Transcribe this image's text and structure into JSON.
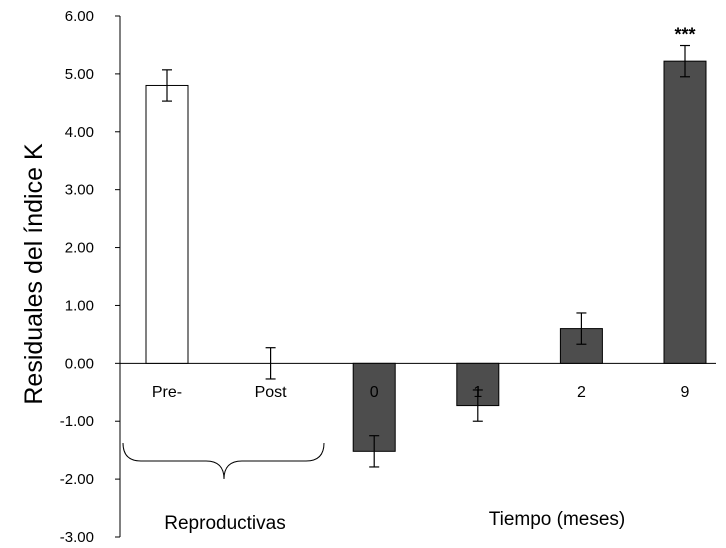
{
  "chart_data": {
    "type": "bar",
    "ylabel": "Residuales del índice K",
    "ylim": [
      -3.0,
      6.0
    ],
    "yticks": [
      "6.00",
      "5.00",
      "4.00",
      "3.00",
      "2.00",
      "1.00",
      "0.00",
      "-1.00",
      "-2.00",
      "-3.00"
    ],
    "categories": [
      "Pre-",
      "Post",
      "0",
      "1",
      "2",
      "9"
    ],
    "values": [
      4.8,
      0.0,
      -1.52,
      -0.73,
      0.6,
      5.22
    ],
    "errors": [
      0.27,
      0.27,
      0.27,
      0.27,
      0.27,
      0.27
    ],
    "fills": [
      "#ffffff",
      "#ffffff",
      "#4d4d4d",
      "#4d4d4d",
      "#4d4d4d",
      "#4d4d4d"
    ],
    "annotations": [
      {
        "category": "9",
        "text": "***"
      }
    ],
    "group_labels": {
      "reproductive": "Reproductivas",
      "time": "Tiempo (meses)"
    },
    "grid": false
  }
}
